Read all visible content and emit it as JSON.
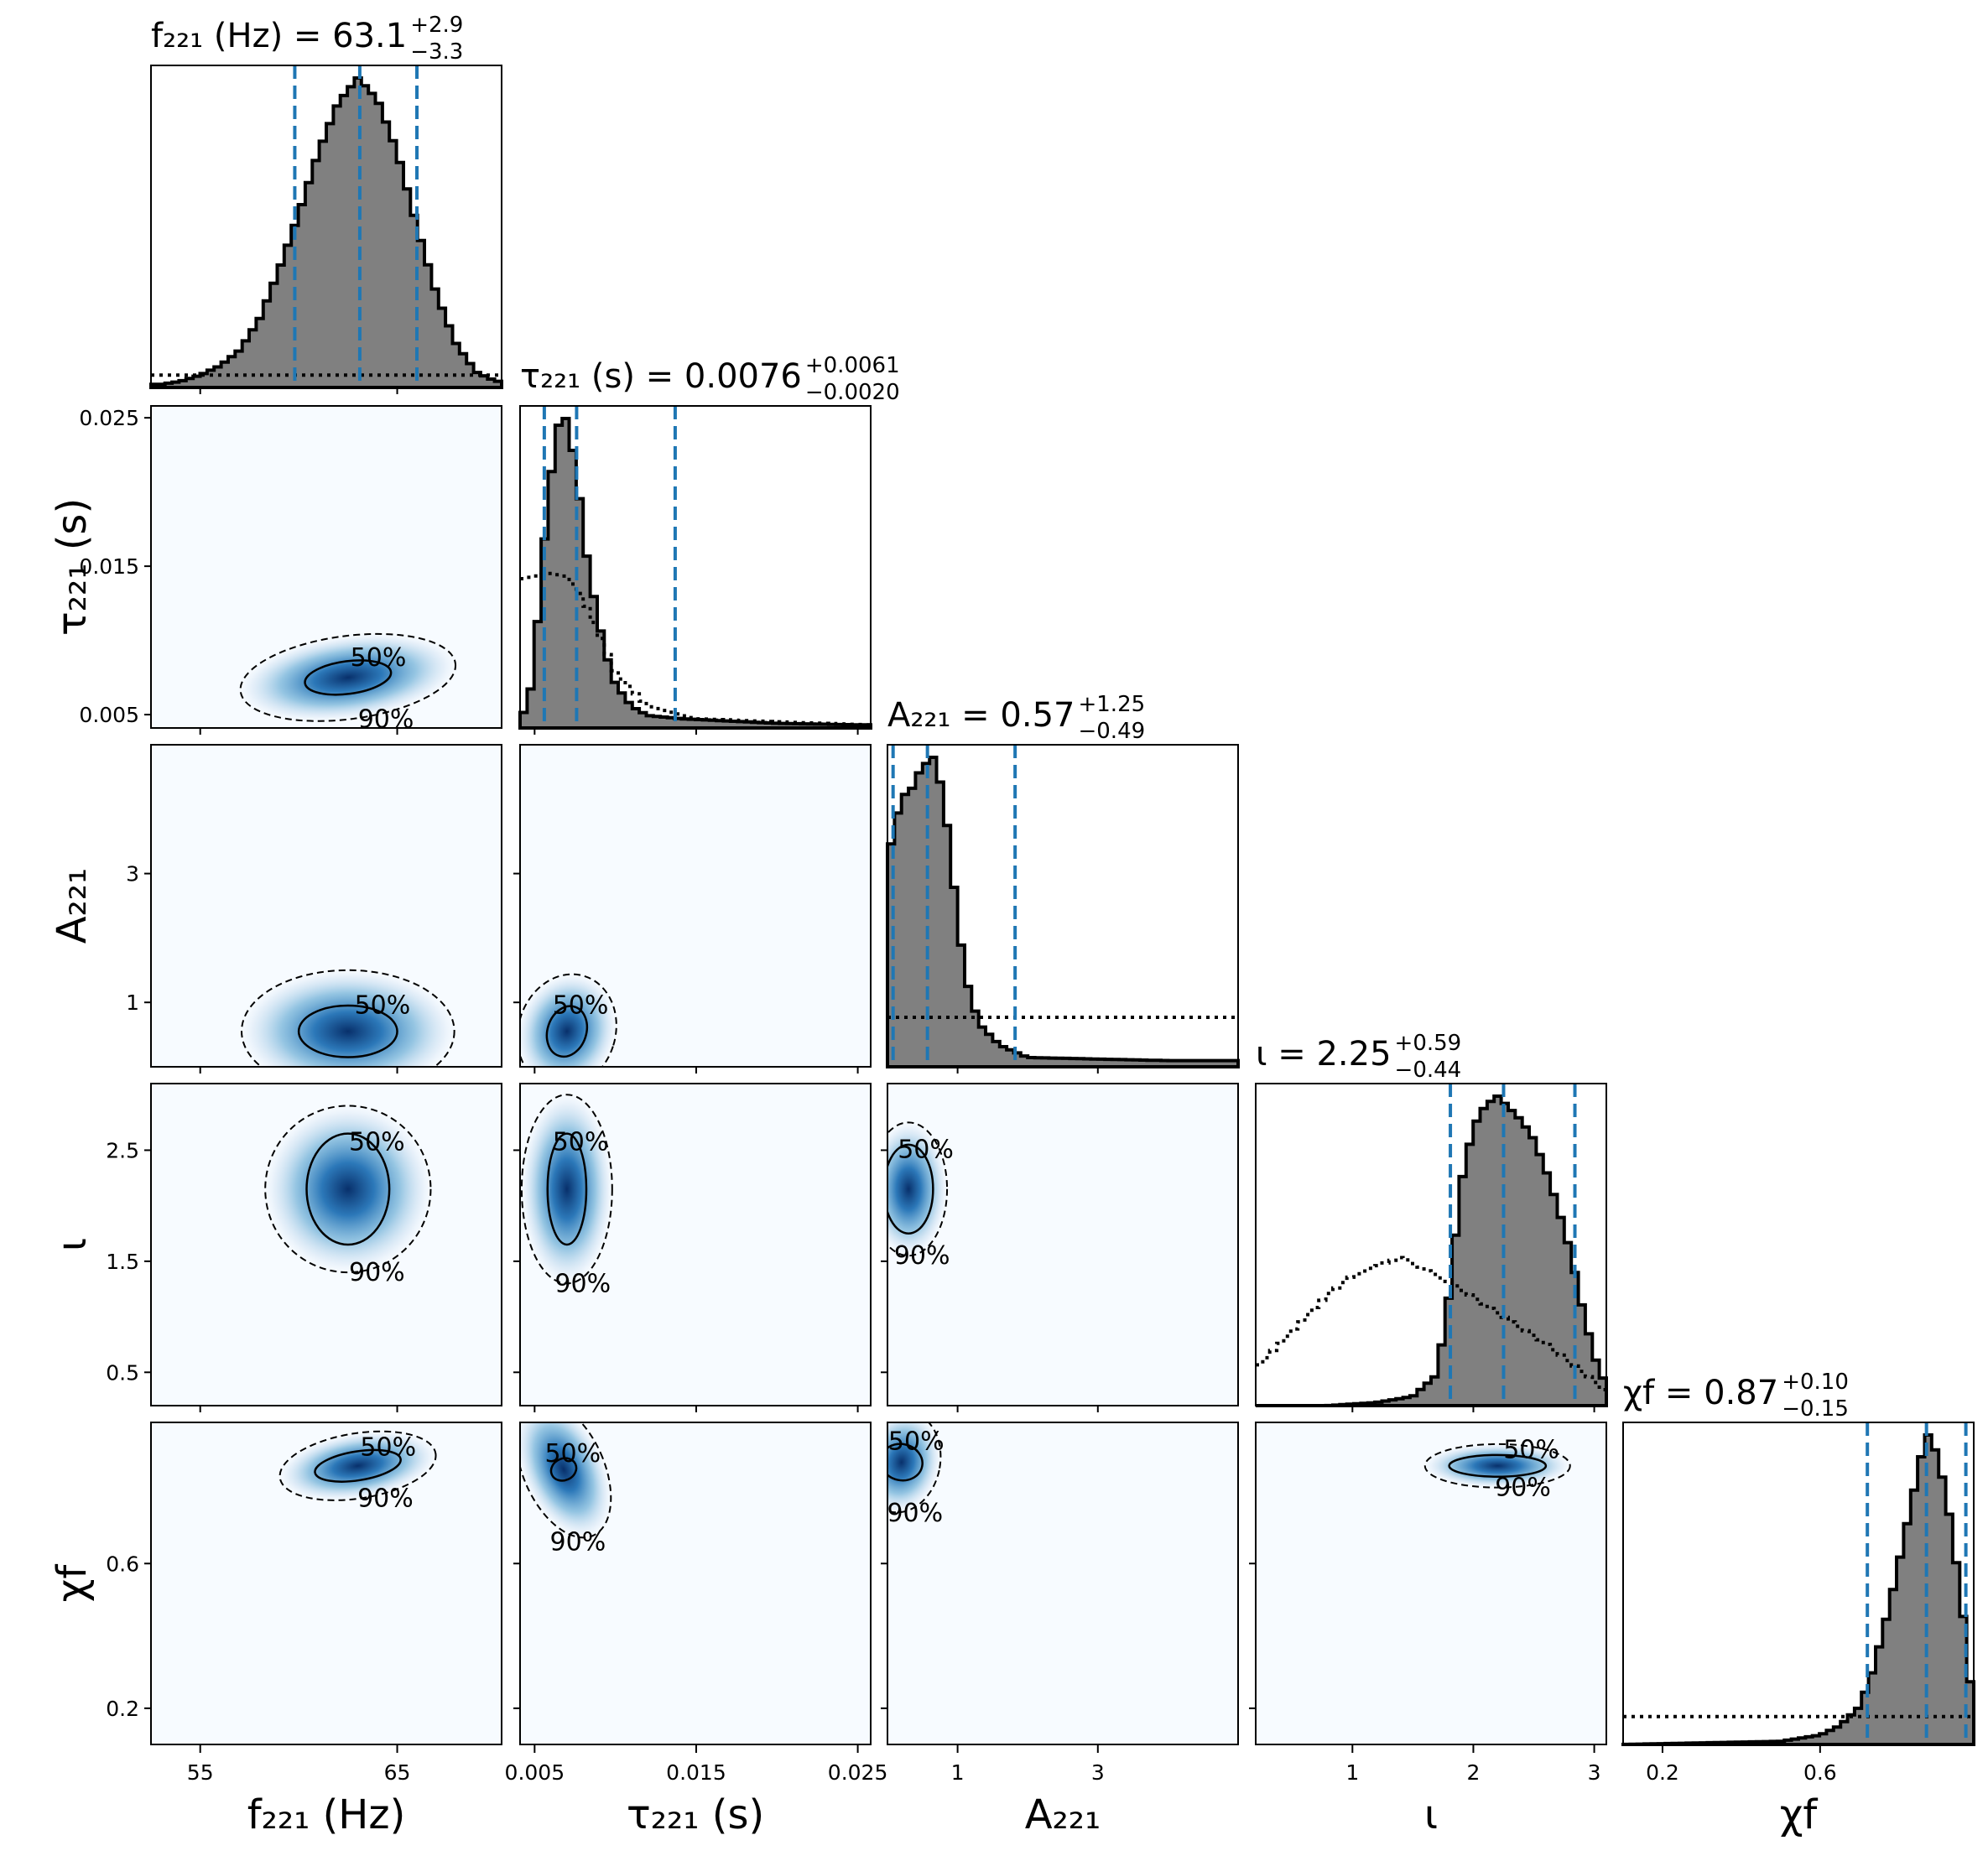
{
  "figure": {
    "params": [
      {
        "key": "f221",
        "title": "f₂₂₁ (Hz) = 63.1",
        "median": "63.1",
        "plus": "+2.9",
        "minus": "−3.3",
        "xlabel": "f₂₂₁ (Hz)",
        "ylabel": "",
        "range": [
          52.5,
          70.3
        ],
        "ticks": [
          55,
          65
        ],
        "tick_labels": [
          "55",
          "65"
        ]
      },
      {
        "key": "tau221",
        "title": "τ₂₂₁ (s) = 0.0076",
        "median": "0.0076",
        "plus": "+0.0061",
        "minus": "−0.0020",
        "xlabel": "τ₂₂₁ (s)",
        "ylabel": "τ₂₂₁ (s)",
        "range": [
          0.0041,
          0.0258
        ],
        "ticks": [
          0.005,
          0.015,
          0.025
        ],
        "tick_labels": [
          "0.005",
          "0.015",
          "0.025"
        ]
      },
      {
        "key": "A221",
        "title": "A₂₂₁ = 0.57",
        "median": "0.57",
        "plus": "+1.25",
        "minus": "−0.49",
        "xlabel": "A₂₂₁",
        "ylabel": "A₂₂₁",
        "range": [
          0.0,
          5.0
        ],
        "ticks": [
          1,
          3
        ],
        "tick_labels": [
          "1",
          "3"
        ]
      },
      {
        "key": "iota",
        "title": "ι = 2.25",
        "median": "2.25",
        "plus": "+0.59",
        "minus": "−0.44",
        "xlabel": "ι",
        "ylabel": "ι",
        "range": [
          0.2,
          3.1
        ],
        "ticks": [
          1,
          2,
          3
        ],
        "tick_labels": [
          "1",
          "2",
          "3"
        ],
        "y_ticks": [
          0.5,
          1.5,
          2.5
        ],
        "y_tick_labels": [
          "0.5",
          "1.5",
          "2.5"
        ]
      },
      {
        "key": "chif",
        "title": "χf = 0.87",
        "median": "0.87",
        "plus": "+0.10",
        "minus": "−0.15",
        "xlabel": "χf",
        "ylabel": "χf",
        "range": [
          0.1,
          0.99
        ],
        "ticks": [
          0.2,
          0.6
        ],
        "tick_labels": [
          "0.2",
          "0.6"
        ]
      }
    ],
    "contour_labels": {
      "inner": "50%",
      "outer": "90%"
    },
    "colors": {
      "hist_fill": "#808080",
      "quantile_line": "#1f77b4",
      "density": "#08306b",
      "density_bg": "#f7fbff"
    }
  },
  "chart_data": {
    "type": "corner",
    "marginals": [
      {
        "param": "f221",
        "quantiles": [
          59.8,
          63.1,
          66.0
        ],
        "posterior": {
          "bins": [
            53,
            54,
            55,
            56,
            57,
            58,
            59,
            60,
            61,
            62,
            63,
            64,
            65,
            66,
            67,
            68,
            69,
            70
          ],
          "density": [
            0.01,
            0.02,
            0.04,
            0.07,
            0.12,
            0.22,
            0.38,
            0.56,
            0.76,
            0.92,
            1.0,
            0.93,
            0.76,
            0.52,
            0.3,
            0.14,
            0.05,
            0.02
          ]
        },
        "prior": {
          "level": 0.04
        }
      },
      {
        "param": "tau221",
        "quantiles": [
          0.0056,
          0.0076,
          0.0137
        ],
        "posterior": {
          "bins": [
            0.0046,
            0.0052,
            0.0058,
            0.0064,
            0.007,
            0.0076,
            0.0082,
            0.0088,
            0.0094,
            0.01,
            0.011,
            0.012,
            0.014,
            0.016,
            0.02,
            0.025
          ],
          "density": [
            0.05,
            0.35,
            0.72,
            0.97,
            1.0,
            0.82,
            0.56,
            0.38,
            0.24,
            0.14,
            0.07,
            0.04,
            0.03,
            0.025,
            0.015,
            0.01
          ]
        },
        "prior": {
          "bins": [
            0.0041,
            0.006,
            0.007,
            0.008,
            0.009,
            0.01,
            0.012,
            0.015,
            0.02,
            0.0258
          ],
          "density": [
            0.48,
            0.5,
            0.49,
            0.42,
            0.3,
            0.18,
            0.07,
            0.03,
            0.02,
            0.01
          ]
        }
      },
      {
        "param": "A221",
        "quantiles": [
          0.08,
          0.57,
          1.82
        ],
        "posterior": {
          "bins": [
            0.05,
            0.15,
            0.25,
            0.35,
            0.45,
            0.55,
            0.65,
            0.75,
            0.85,
            0.95,
            1.1,
            1.3,
            1.6,
            2.0,
            3.0,
            4.0,
            5.0
          ],
          "density": [
            0.72,
            0.82,
            0.88,
            0.9,
            0.95,
            0.98,
            1.0,
            0.92,
            0.78,
            0.58,
            0.3,
            0.14,
            0.07,
            0.03,
            0.025,
            0.02,
            0.02
          ]
        },
        "prior": {
          "level": 0.16
        }
      },
      {
        "param": "iota",
        "quantiles": [
          1.81,
          2.25,
          2.84
        ],
        "posterior": {
          "bins": [
            0.3,
            0.8,
            1.2,
            1.5,
            1.7,
            1.8,
            1.9,
            2.0,
            2.1,
            2.2,
            2.3,
            2.4,
            2.5,
            2.6,
            2.7,
            2.8,
            2.9,
            3.0,
            3.1
          ],
          "density": [
            0.0,
            0.0,
            0.01,
            0.03,
            0.1,
            0.36,
            0.72,
            0.9,
            0.97,
            1.0,
            0.96,
            0.92,
            0.86,
            0.76,
            0.64,
            0.5,
            0.32,
            0.16,
            0.06
          ]
        },
        "prior": {
          "bins": [
            0.2,
            0.4,
            0.6,
            0.8,
            1.0,
            1.2,
            1.4,
            1.6,
            1.8,
            2.0,
            2.2,
            2.4,
            2.6,
            2.8,
            3.0,
            3.1
          ],
          "density": [
            0.12,
            0.2,
            0.28,
            0.36,
            0.42,
            0.45,
            0.48,
            0.44,
            0.4,
            0.35,
            0.3,
            0.25,
            0.2,
            0.14,
            0.08,
            0.04
          ]
        }
      },
      {
        "param": "chif",
        "quantiles": [
          0.72,
          0.87,
          0.97
        ],
        "posterior": {
          "bins": [
            0.1,
            0.5,
            0.6,
            0.65,
            0.7,
            0.73,
            0.76,
            0.79,
            0.82,
            0.85,
            0.87,
            0.9,
            0.93,
            0.96,
            0.98
          ],
          "density": [
            0.0,
            0.01,
            0.03,
            0.06,
            0.12,
            0.22,
            0.36,
            0.52,
            0.7,
            0.88,
            1.0,
            0.92,
            0.72,
            0.45,
            0.2
          ]
        },
        "prior": {
          "level": 0.09
        }
      }
    ],
    "joint": [
      {
        "x": "f221",
        "y": "tau221",
        "peak": [
          62.5,
          0.0075
        ],
        "sigma50": [
          2.2,
          0.0011
        ],
        "sigma90": [
          5.5,
          0.0028
        ],
        "skew": 0.25
      },
      {
        "x": "f221",
        "y": "A221",
        "peak": [
          62.5,
          0.55
        ],
        "sigma50": [
          2.5,
          0.4
        ],
        "sigma90": [
          5.4,
          0.95
        ],
        "skew": 0.0
      },
      {
        "x": "tau221",
        "y": "A221",
        "peak": [
          0.007,
          0.55
        ],
        "sigma50": [
          0.0012,
          0.4
        ],
        "sigma90": [
          0.003,
          0.9
        ],
        "skew": -0.6
      },
      {
        "x": "f221",
        "y": "iota",
        "peak": [
          62.5,
          2.15
        ],
        "sigma50": [
          2.1,
          0.5
        ],
        "sigma90": [
          4.2,
          0.75
        ],
        "skew": 0.0
      },
      {
        "x": "tau221",
        "y": "iota",
        "peak": [
          0.007,
          2.15
        ],
        "sigma50": [
          0.0012,
          0.5
        ],
        "sigma90": [
          0.0028,
          0.85
        ],
        "skew": 0.0
      },
      {
        "x": "A221",
        "y": "iota",
        "peak": [
          0.3,
          2.15
        ],
        "sigma50": [
          0.35,
          0.4
        ],
        "sigma90": [
          0.55,
          0.6
        ],
        "skew": 0.0
      },
      {
        "x": "f221",
        "y": "chif",
        "peak": [
          63.0,
          0.87
        ],
        "sigma50": [
          2.2,
          0.04
        ],
        "sigma90": [
          4.0,
          0.09
        ],
        "skew": 0.3
      },
      {
        "x": "tau221",
        "y": "chif",
        "peak": [
          0.0068,
          0.86
        ],
        "sigma50": [
          0.0008,
          0.03
        ],
        "sigma90": [
          0.0025,
          0.2
        ],
        "skew": 0.8
      },
      {
        "x": "A221",
        "y": "chif",
        "peak": [
          0.2,
          0.88
        ],
        "sigma50": [
          0.3,
          0.05
        ],
        "sigma90": [
          0.55,
          0.14
        ],
        "skew": -0.4
      },
      {
        "x": "iota",
        "y": "chif",
        "peak": [
          2.2,
          0.87
        ],
        "sigma50": [
          0.4,
          0.03
        ],
        "sigma90": [
          0.6,
          0.06
        ],
        "skew": 0.0
      }
    ],
    "contour_levels": [
      "50%",
      "90%"
    ],
    "grid": false,
    "legend": "none"
  }
}
